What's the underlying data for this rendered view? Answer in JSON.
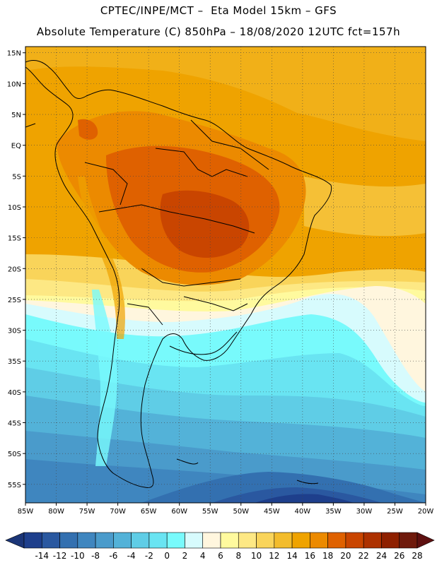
{
  "header": {
    "line1": "CPTEC/INPE/MCT –  Eta Model 15km – GFS",
    "line2": "Absolute Temperature (C) 850hPa – 18/08/2020 12UTC fct=157h"
  },
  "map": {
    "lon_range": [
      -85,
      -20
    ],
    "lat_range": [
      -58,
      16
    ],
    "lat_ticks": [
      "15N",
      "10N",
      "5N",
      "EQ",
      "5S",
      "10S",
      "15S",
      "20S",
      "25S",
      "30S",
      "35S",
      "40S",
      "45S",
      "50S",
      "55S"
    ],
    "lat_tick_values": [
      15,
      10,
      5,
      0,
      -5,
      -10,
      -15,
      -20,
      -25,
      -30,
      -35,
      -40,
      -45,
      -50,
      -55
    ],
    "lon_ticks": [
      "85W",
      "80W",
      "75W",
      "70W",
      "65W",
      "60W",
      "55W",
      "50W",
      "45W",
      "40W",
      "35W",
      "30W",
      "25W",
      "20W"
    ],
    "lon_tick_values": [
      -85,
      -80,
      -75,
      -70,
      -65,
      -60,
      -55,
      -50,
      -45,
      -40,
      -35,
      -30,
      -25,
      -20
    ],
    "gridlines": "dotted"
  },
  "colorbar": {
    "labels": [
      "-14",
      "-12",
      "-10",
      "-8",
      "-6",
      "-4",
      "-2",
      "0",
      "2",
      "4",
      "6",
      "8",
      "10",
      "12",
      "14",
      "16",
      "18",
      "20",
      "22",
      "24",
      "26",
      "28"
    ],
    "colors": [
      "#1e3f8c",
      "#2a58a0",
      "#3370b0",
      "#3f86bf",
      "#4a9bcb",
      "#53b2d8",
      "#5fcde6",
      "#69e4f2",
      "#78fafc",
      "#d7fbfd",
      "#fff6de",
      "#fffa9e",
      "#fde884",
      "#f9d45a",
      "#f3bc2c",
      "#efa300",
      "#ec8a00",
      "#df6100",
      "#c94500",
      "#ad3100",
      "#8e2000",
      "#6f1a0c"
    ],
    "low_color": "#1b3577",
    "high_color": "#5e1010"
  }
}
